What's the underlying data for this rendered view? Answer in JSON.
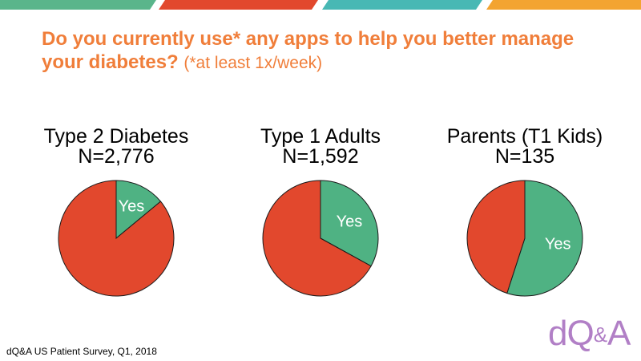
{
  "title": {
    "main": "Do you currently use* any apps to help you better manage your diabetes?",
    "note": "(*at least 1x/week)"
  },
  "colors": {
    "accent": "#f07e3a",
    "yes": "#4fb283",
    "no": "#e2482d",
    "top_bar": [
      "#5ab58b",
      "#e2482d",
      "#48b8b4",
      "#f3a431"
    ]
  },
  "chart_data": [
    {
      "type": "pie",
      "title": "Type 2 Diabetes",
      "subtitle": "N=2,776",
      "slices": [
        {
          "label": "Yes",
          "value": 14,
          "color": "#4fb283"
        },
        {
          "label": "",
          "value": 86,
          "color": "#e2482d"
        }
      ]
    },
    {
      "type": "pie",
      "title": "Type 1 Adults",
      "subtitle": "N=1,592",
      "slices": [
        {
          "label": "Yes",
          "value": 33,
          "color": "#4fb283"
        },
        {
          "label": "",
          "value": 67,
          "color": "#e2482d"
        }
      ]
    },
    {
      "type": "pie",
      "title": "Parents (T1 Kids)",
      "subtitle": "N=135",
      "slices": [
        {
          "label": "Yes",
          "value": 55,
          "color": "#4fb283"
        },
        {
          "label": "",
          "value": 45,
          "color": "#e2482d"
        }
      ]
    }
  ],
  "footer": "dQ&A US Patient Survey, Q1, 2018",
  "logo": {
    "text_1": "dQ",
    "amp": "&",
    "text_2": "A"
  }
}
